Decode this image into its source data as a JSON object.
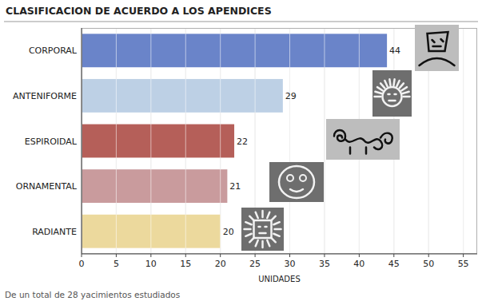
{
  "chart_data": {
    "type": "bar",
    "orientation": "horizontal",
    "title": "CLASIFICACION DE ACUERDO A LOS APENDICES",
    "xlabel": "UNIDADES",
    "annotations": [
      "De un total de 28 yacimientos estudiados"
    ],
    "categories": [
      "CORPORAL",
      "ANTENIFORME",
      "ESPIROIDAL",
      "ORNAMENTAL",
      "RADIANTE"
    ],
    "values": [
      44,
      29,
      22,
      21,
      20
    ],
    "colors": [
      "#6a84c9",
      "#bdd0e5",
      "#b55f59",
      "#c99b9d",
      "#ecd99d"
    ],
    "xlim": [
      0,
      57
    ],
    "xticks": [
      0,
      5,
      10,
      15,
      20,
      25,
      30,
      35,
      40,
      45,
      50,
      55
    ],
    "grid": true,
    "data_labels": true
  }
}
